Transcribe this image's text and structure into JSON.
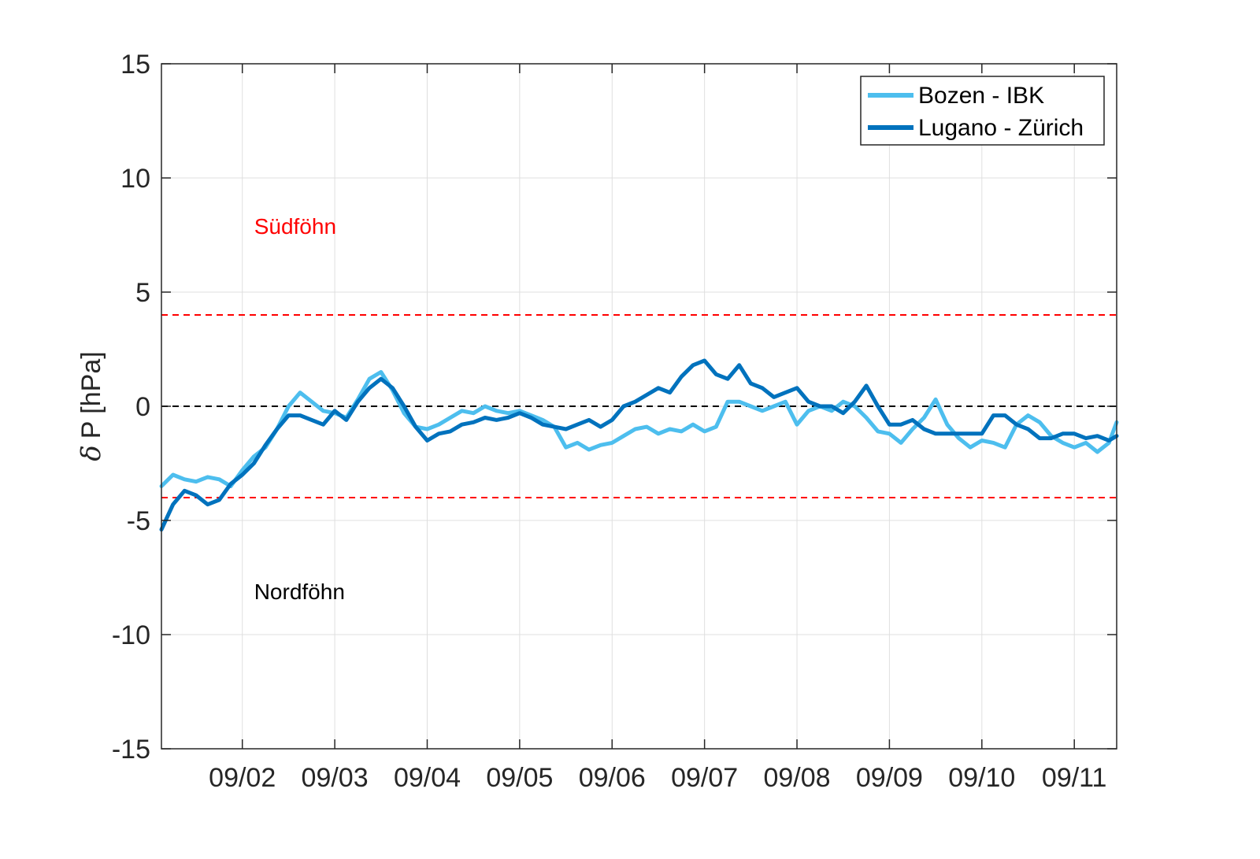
{
  "chart_data": {
    "type": "line",
    "title": "",
    "xlabel": "",
    "ylabel": "P [hPa]",
    "ylabel_symbol": "δ",
    "ylim": [
      -15,
      15
    ],
    "yticks": [
      -15,
      -10,
      -5,
      0,
      5,
      10,
      15
    ],
    "ytick_labels": [
      "-15",
      "-10",
      "-5",
      "0",
      "5",
      "10",
      "15"
    ],
    "xlim": [
      "09/01 03:00",
      "09/11 11:00"
    ],
    "xticks": [
      "09/02",
      "09/03",
      "09/04",
      "09/05",
      "09/06",
      "09/07",
      "09/08",
      "09/09",
      "09/10",
      "09/11"
    ],
    "grid": true,
    "legend_position": "top-right",
    "reference_lines": [
      {
        "y": 4,
        "color": "#ff0000",
        "style": "dashed"
      },
      {
        "y": 0,
        "color": "#000000",
        "style": "dashed"
      },
      {
        "y": -4,
        "color": "#ff0000",
        "style": "dashed"
      }
    ],
    "annotations": [
      {
        "text": "Südföhn",
        "x": "09/02 00:00",
        "y": 7.9,
        "color": "#ff0000"
      },
      {
        "text": "Nordföhn",
        "x": "09/02 00:00",
        "y": -8.1,
        "color": "#000000"
      }
    ],
    "series": [
      {
        "name": "Bozen - IBK",
        "color": "#4dbeee",
        "x": [
          "09/01 03:00",
          "09/01 06:00",
          "09/01 09:00",
          "09/01 12:00",
          "09/01 15:00",
          "09/01 18:00",
          "09/01 21:00",
          "09/02 00:00",
          "09/02 03:00",
          "09/02 06:00",
          "09/02 09:00",
          "09/02 12:00",
          "09/02 15:00",
          "09/02 18:00",
          "09/02 21:00",
          "09/03 00:00",
          "09/03 03:00",
          "09/03 06:00",
          "09/03 09:00",
          "09/03 12:00",
          "09/03 15:00",
          "09/03 18:00",
          "09/03 21:00",
          "09/04 00:00",
          "09/04 03:00",
          "09/04 06:00",
          "09/04 09:00",
          "09/04 12:00",
          "09/04 15:00",
          "09/04 18:00",
          "09/04 21:00",
          "09/05 00:00",
          "09/05 03:00",
          "09/05 06:00",
          "09/05 09:00",
          "09/05 12:00",
          "09/05 15:00",
          "09/05 18:00",
          "09/05 21:00",
          "09/06 00:00",
          "09/06 03:00",
          "09/06 06:00",
          "09/06 09:00",
          "09/06 12:00",
          "09/06 15:00",
          "09/06 18:00",
          "09/06 21:00",
          "09/07 00:00",
          "09/07 03:00",
          "09/07 06:00",
          "09/07 09:00",
          "09/07 12:00",
          "09/07 15:00",
          "09/07 18:00",
          "09/07 21:00",
          "09/08 00:00",
          "09/08 03:00",
          "09/08 06:00",
          "09/08 09:00",
          "09/08 12:00",
          "09/08 15:00",
          "09/08 18:00",
          "09/08 21:00",
          "09/09 00:00",
          "09/09 03:00",
          "09/09 06:00",
          "09/09 09:00",
          "09/09 12:00",
          "09/09 15:00",
          "09/09 18:00",
          "09/09 21:00",
          "09/10 00:00",
          "09/10 03:00",
          "09/10 06:00",
          "09/10 09:00",
          "09/10 12:00",
          "09/10 15:00",
          "09/10 18:00",
          "09/10 21:00",
          "09/11 00:00",
          "09/11 03:00",
          "09/11 06:00",
          "09/11 09:00",
          "09/11 11:00"
        ],
        "values": [
          -3.5,
          -3.0,
          -3.2,
          -3.3,
          -3.1,
          -3.2,
          -3.5,
          -2.8,
          -2.2,
          -1.8,
          -1.0,
          0.0,
          0.6,
          0.2,
          -0.2,
          -0.3,
          -0.5,
          0.3,
          1.2,
          1.5,
          0.7,
          -0.3,
          -0.9,
          -1.0,
          -0.8,
          -0.5,
          -0.2,
          -0.3,
          0.0,
          -0.2,
          -0.3,
          -0.2,
          -0.4,
          -0.6,
          -0.9,
          -1.8,
          -1.6,
          -1.9,
          -1.7,
          -1.6,
          -1.3,
          -1.0,
          -0.9,
          -1.2,
          -1.0,
          -1.1,
          -0.8,
          -1.1,
          -0.9,
          0.2,
          0.2,
          0.0,
          -0.2,
          0.0,
          0.2,
          -0.8,
          -0.2,
          0.0,
          -0.2,
          0.2,
          0.0,
          -0.5,
          -1.1,
          -1.2,
          -1.6,
          -1.0,
          -0.5,
          0.3,
          -0.8,
          -1.4,
          -1.8,
          -1.5,
          -1.6,
          -1.8,
          -0.8,
          -0.4,
          -0.7,
          -1.3,
          -1.6,
          -1.8,
          -1.6,
          -2.0,
          -1.6,
          -0.7
        ]
      },
      {
        "name": "Lugano - Zürich",
        "color": "#0072bd",
        "x": [
          "09/01 03:00",
          "09/01 06:00",
          "09/01 09:00",
          "09/01 12:00",
          "09/01 15:00",
          "09/01 18:00",
          "09/01 21:00",
          "09/02 00:00",
          "09/02 03:00",
          "09/02 06:00",
          "09/02 09:00",
          "09/02 12:00",
          "09/02 15:00",
          "09/02 18:00",
          "09/02 21:00",
          "09/03 00:00",
          "09/03 03:00",
          "09/03 06:00",
          "09/03 09:00",
          "09/03 12:00",
          "09/03 15:00",
          "09/03 18:00",
          "09/03 21:00",
          "09/04 00:00",
          "09/04 03:00",
          "09/04 06:00",
          "09/04 09:00",
          "09/04 12:00",
          "09/04 15:00",
          "09/04 18:00",
          "09/04 21:00",
          "09/05 00:00",
          "09/05 03:00",
          "09/05 06:00",
          "09/05 09:00",
          "09/05 12:00",
          "09/05 15:00",
          "09/05 18:00",
          "09/05 21:00",
          "09/06 00:00",
          "09/06 03:00",
          "09/06 06:00",
          "09/06 09:00",
          "09/06 12:00",
          "09/06 15:00",
          "09/06 18:00",
          "09/06 21:00",
          "09/07 00:00",
          "09/07 03:00",
          "09/07 06:00",
          "09/07 09:00",
          "09/07 12:00",
          "09/07 15:00",
          "09/07 18:00",
          "09/07 21:00",
          "09/08 00:00",
          "09/08 03:00",
          "09/08 06:00",
          "09/08 09:00",
          "09/08 12:00",
          "09/08 15:00",
          "09/08 18:00",
          "09/08 21:00",
          "09/09 00:00",
          "09/09 03:00",
          "09/09 06:00",
          "09/09 09:00",
          "09/09 12:00",
          "09/09 15:00",
          "09/09 18:00",
          "09/09 21:00",
          "09/10 00:00",
          "09/10 03:00",
          "09/10 06:00",
          "09/10 09:00",
          "09/10 12:00",
          "09/10 15:00",
          "09/10 18:00",
          "09/10 21:00",
          "09/11 00:00",
          "09/11 03:00",
          "09/11 06:00",
          "09/11 09:00",
          "09/11 11:00"
        ],
        "values": [
          -5.4,
          -4.3,
          -3.7,
          -3.9,
          -4.3,
          -4.1,
          -3.4,
          -3.0,
          -2.5,
          -1.7,
          -1.0,
          -0.4,
          -0.4,
          -0.6,
          -0.8,
          -0.2,
          -0.6,
          0.2,
          0.8,
          1.2,
          0.8,
          0.0,
          -0.9,
          -1.5,
          -1.2,
          -1.1,
          -0.8,
          -0.7,
          -0.5,
          -0.6,
          -0.5,
          -0.3,
          -0.5,
          -0.8,
          -0.9,
          -1.0,
          -0.8,
          -0.6,
          -0.9,
          -0.6,
          0.0,
          0.2,
          0.5,
          0.8,
          0.6,
          1.3,
          1.8,
          2.0,
          1.4,
          1.2,
          1.8,
          1.0,
          0.8,
          0.4,
          0.6,
          0.8,
          0.2,
          0.0,
          0.0,
          -0.3,
          0.2,
          0.9,
          0.0,
          -0.8,
          -0.8,
          -0.6,
          -1.0,
          -1.2,
          -1.2,
          -1.2,
          -1.2,
          -1.2,
          -0.4,
          -0.4,
          -0.8,
          -1.0,
          -1.4,
          -1.4,
          -1.2,
          -1.2,
          -1.4,
          -1.3,
          -1.5,
          -1.3
        ]
      }
    ]
  }
}
